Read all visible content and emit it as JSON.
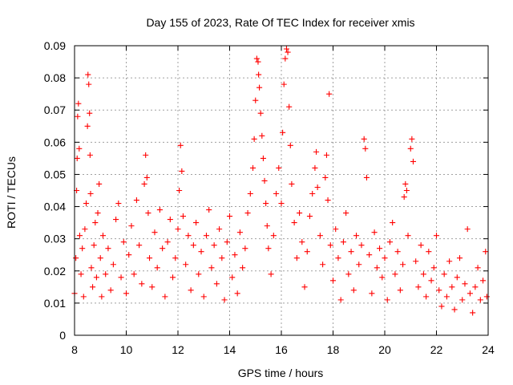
{
  "chart_data": {
    "type": "scatter",
    "title": "Day 155 of 2023, Rate Of TEC Index for receiver xmis",
    "xlabel": "GPS time / hours",
    "ylabel": "ROTI / TECUs",
    "xlim": [
      8,
      24
    ],
    "ylim": [
      0,
      0.09
    ],
    "xticks": [
      8,
      10,
      12,
      14,
      16,
      18,
      20,
      22,
      24
    ],
    "yticks": [
      0,
      0.01,
      0.02,
      0.03,
      0.04,
      0.05,
      0.06,
      0.07,
      0.08,
      0.09
    ],
    "ytick_labels": [
      "0",
      "0.01",
      "0.02",
      "0.03",
      "0.04",
      "0.05",
      "0.06",
      "0.07",
      "0.08",
      "0.09"
    ],
    "grid": true,
    "marker": "plus",
    "color": "#ff0000",
    "series": [
      {
        "points": [
          [
            8.0,
            0.013
          ],
          [
            8.05,
            0.024
          ],
          [
            8.08,
            0.045
          ],
          [
            8.1,
            0.055
          ],
          [
            8.12,
            0.068
          ],
          [
            8.15,
            0.072
          ],
          [
            8.18,
            0.058
          ],
          [
            8.2,
            0.031
          ],
          [
            8.25,
            0.019
          ],
          [
            8.3,
            0.027
          ],
          [
            8.35,
            0.012
          ],
          [
            8.4,
            0.033
          ],
          [
            8.45,
            0.041
          ],
          [
            8.5,
            0.065
          ],
          [
            8.52,
            0.081
          ],
          [
            8.55,
            0.078
          ],
          [
            8.58,
            0.069
          ],
          [
            8.6,
            0.056
          ],
          [
            8.62,
            0.044
          ],
          [
            8.65,
            0.021
          ],
          [
            8.7,
            0.015
          ],
          [
            8.75,
            0.028
          ],
          [
            8.8,
            0.035
          ],
          [
            8.85,
            0.018
          ],
          [
            8.9,
            0.038
          ],
          [
            8.95,
            0.047
          ],
          [
            9.0,
            0.024
          ],
          [
            9.05,
            0.012
          ],
          [
            9.1,
            0.031
          ],
          [
            9.2,
            0.019
          ],
          [
            9.3,
            0.027
          ],
          [
            9.4,
            0.014
          ],
          [
            9.5,
            0.022
          ],
          [
            9.6,
            0.036
          ],
          [
            9.7,
            0.041
          ],
          [
            9.8,
            0.018
          ],
          [
            9.9,
            0.029
          ],
          [
            10.0,
            0.013
          ],
          [
            10.1,
            0.025
          ],
          [
            10.2,
            0.034
          ],
          [
            10.3,
            0.019
          ],
          [
            10.4,
            0.042
          ],
          [
            10.5,
            0.028
          ],
          [
            10.6,
            0.016
          ],
          [
            10.7,
            0.047
          ],
          [
            10.75,
            0.056
          ],
          [
            10.8,
            0.049
          ],
          [
            10.85,
            0.038
          ],
          [
            10.9,
            0.024
          ],
          [
            11.0,
            0.015
          ],
          [
            11.1,
            0.032
          ],
          [
            11.2,
            0.021
          ],
          [
            11.3,
            0.039
          ],
          [
            11.4,
            0.027
          ],
          [
            11.5,
            0.012
          ],
          [
            11.6,
            0.029
          ],
          [
            11.7,
            0.036
          ],
          [
            11.8,
            0.018
          ],
          [
            11.9,
            0.024
          ],
          [
            12.0,
            0.033
          ],
          [
            12.05,
            0.045
          ],
          [
            12.1,
            0.059
          ],
          [
            12.15,
            0.051
          ],
          [
            12.2,
            0.037
          ],
          [
            12.3,
            0.022
          ],
          [
            12.4,
            0.031
          ],
          [
            12.5,
            0.014
          ],
          [
            12.6,
            0.028
          ],
          [
            12.7,
            0.035
          ],
          [
            12.8,
            0.019
          ],
          [
            12.9,
            0.026
          ],
          [
            13.0,
            0.012
          ],
          [
            13.1,
            0.031
          ],
          [
            13.2,
            0.039
          ],
          [
            13.3,
            0.021
          ],
          [
            13.4,
            0.028
          ],
          [
            13.5,
            0.016
          ],
          [
            13.6,
            0.033
          ],
          [
            13.7,
            0.024
          ],
          [
            13.8,
            0.011
          ],
          [
            13.9,
            0.029
          ],
          [
            14.0,
            0.037
          ],
          [
            14.1,
            0.018
          ],
          [
            14.2,
            0.025
          ],
          [
            14.3,
            0.013
          ],
          [
            14.4,
            0.032
          ],
          [
            14.5,
            0.021
          ],
          [
            14.6,
            0.027
          ],
          [
            14.7,
            0.038
          ],
          [
            14.8,
            0.044
          ],
          [
            14.9,
            0.052
          ],
          [
            14.95,
            0.061
          ],
          [
            15.0,
            0.073
          ],
          [
            15.05,
            0.086
          ],
          [
            15.1,
            0.085
          ],
          [
            15.12,
            0.081
          ],
          [
            15.15,
            0.077
          ],
          [
            15.2,
            0.069
          ],
          [
            15.25,
            0.062
          ],
          [
            15.3,
            0.055
          ],
          [
            15.35,
            0.048
          ],
          [
            15.4,
            0.041
          ],
          [
            15.45,
            0.034
          ],
          [
            15.5,
            0.027
          ],
          [
            15.6,
            0.019
          ],
          [
            15.7,
            0.031
          ],
          [
            15.8,
            0.044
          ],
          [
            15.9,
            0.052
          ],
          [
            16.0,
            0.041
          ],
          [
            16.05,
            0.063
          ],
          [
            16.1,
            0.078
          ],
          [
            16.15,
            0.086
          ],
          [
            16.2,
            0.089
          ],
          [
            16.25,
            0.088
          ],
          [
            16.3,
            0.071
          ],
          [
            16.35,
            0.059
          ],
          [
            16.4,
            0.047
          ],
          [
            16.5,
            0.035
          ],
          [
            16.6,
            0.024
          ],
          [
            16.7,
            0.038
          ],
          [
            16.8,
            0.029
          ],
          [
            16.9,
            0.015
          ],
          [
            17.0,
            0.026
          ],
          [
            17.1,
            0.037
          ],
          [
            17.2,
            0.044
          ],
          [
            17.3,
            0.052
          ],
          [
            17.35,
            0.057
          ],
          [
            17.4,
            0.046
          ],
          [
            17.5,
            0.031
          ],
          [
            17.6,
            0.022
          ],
          [
            17.7,
            0.049
          ],
          [
            17.75,
            0.056
          ],
          [
            17.8,
            0.042
          ],
          [
            17.85,
            0.075
          ],
          [
            17.9,
            0.028
          ],
          [
            18.0,
            0.017
          ],
          [
            18.1,
            0.033
          ],
          [
            18.2,
            0.024
          ],
          [
            18.3,
            0.011
          ],
          [
            18.4,
            0.029
          ],
          [
            18.5,
            0.038
          ],
          [
            18.6,
            0.019
          ],
          [
            18.7,
            0.026
          ],
          [
            18.8,
            0.014
          ],
          [
            18.9,
            0.031
          ],
          [
            19.0,
            0.022
          ],
          [
            19.1,
            0.028
          ],
          [
            19.2,
            0.061
          ],
          [
            19.25,
            0.058
          ],
          [
            19.3,
            0.049
          ],
          [
            19.4,
            0.025
          ],
          [
            19.5,
            0.013
          ],
          [
            19.6,
            0.032
          ],
          [
            19.7,
            0.021
          ],
          [
            19.8,
            0.027
          ],
          [
            19.9,
            0.018
          ],
          [
            20.0,
            0.024
          ],
          [
            20.1,
            0.011
          ],
          [
            20.2,
            0.029
          ],
          [
            20.3,
            0.035
          ],
          [
            20.4,
            0.019
          ],
          [
            20.5,
            0.026
          ],
          [
            20.6,
            0.014
          ],
          [
            20.7,
            0.022
          ],
          [
            20.75,
            0.043
          ],
          [
            20.8,
            0.047
          ],
          [
            20.85,
            0.045
          ],
          [
            20.9,
            0.031
          ],
          [
            21.0,
            0.058
          ],
          [
            21.05,
            0.061
          ],
          [
            21.1,
            0.054
          ],
          [
            21.2,
            0.023
          ],
          [
            21.3,
            0.015
          ],
          [
            21.4,
            0.028
          ],
          [
            21.5,
            0.019
          ],
          [
            21.6,
            0.012
          ],
          [
            21.7,
            0.026
          ],
          [
            21.8,
            0.017
          ],
          [
            21.9,
            0.021
          ],
          [
            22.0,
            0.031
          ],
          [
            22.1,
            0.014
          ],
          [
            22.2,
            0.009
          ],
          [
            22.3,
            0.019
          ],
          [
            22.4,
            0.012
          ],
          [
            22.5,
            0.023
          ],
          [
            22.6,
            0.015
          ],
          [
            22.7,
            0.008
          ],
          [
            22.8,
            0.018
          ],
          [
            22.9,
            0.024
          ],
          [
            23.0,
            0.011
          ],
          [
            23.1,
            0.016
          ],
          [
            23.2,
            0.033
          ],
          [
            23.3,
            0.013
          ],
          [
            23.4,
            0.007
          ],
          [
            23.5,
            0.015
          ],
          [
            23.6,
            0.021
          ],
          [
            23.7,
            0.011
          ],
          [
            23.8,
            0.017
          ],
          [
            23.9,
            0.026
          ],
          [
            23.95,
            0.012
          ]
        ]
      }
    ]
  }
}
